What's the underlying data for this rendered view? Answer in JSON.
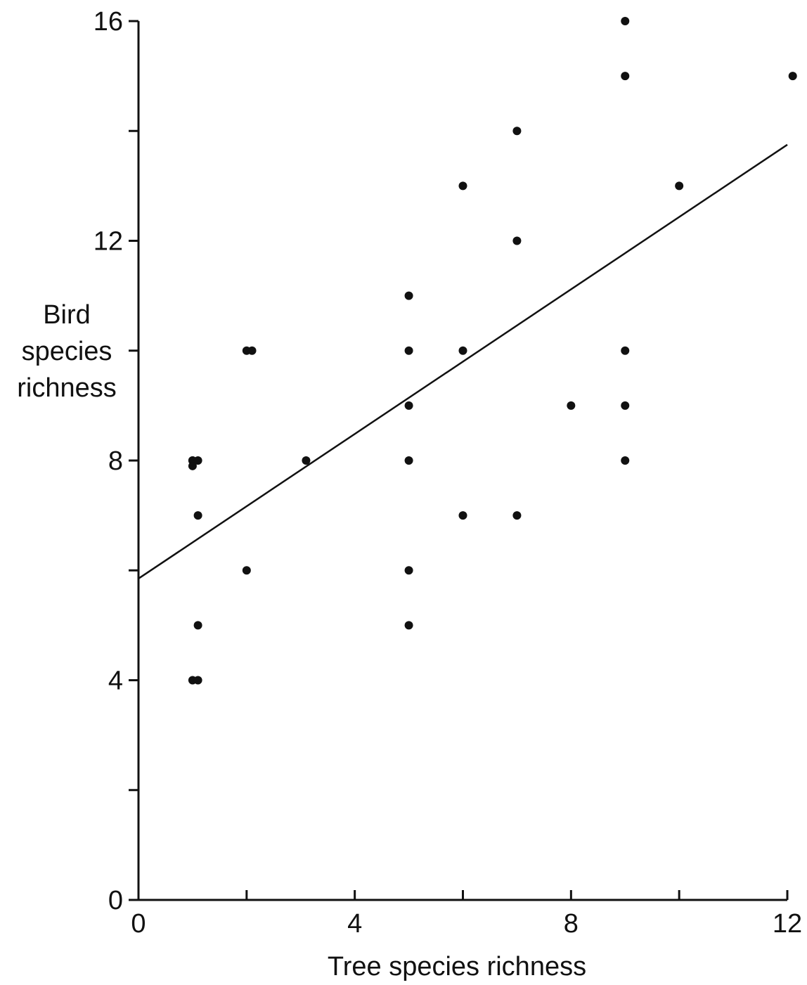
{
  "chart_data": {
    "type": "scatter",
    "title": "",
    "xlabel": "Tree species richness",
    "ylabel": [
      "Bird",
      "species",
      "richness"
    ],
    "xlim": [
      0,
      12
    ],
    "ylim": [
      0,
      16
    ],
    "x_ticks": [
      0,
      4,
      8,
      12
    ],
    "x_minor_ticks": [
      2,
      6,
      10
    ],
    "y_ticks": [
      0,
      4,
      8,
      12,
      16
    ],
    "y_minor_ticks": [
      2,
      6,
      10,
      14
    ],
    "grid": false,
    "legend": "none",
    "point_color": "#111111",
    "points": [
      {
        "x": 1,
        "y": 8
      },
      {
        "x": 1,
        "y": 8
      },
      {
        "x": 1.1,
        "y": 8
      },
      {
        "x": 1,
        "y": 7.9
      },
      {
        "x": 1.1,
        "y": 7
      },
      {
        "x": 1.1,
        "y": 5
      },
      {
        "x": 1,
        "y": 4
      },
      {
        "x": 1.1,
        "y": 4
      },
      {
        "x": 2,
        "y": 10
      },
      {
        "x": 2.1,
        "y": 10
      },
      {
        "x": 2,
        "y": 6
      },
      {
        "x": 3.1,
        "y": 8
      },
      {
        "x": 5,
        "y": 11
      },
      {
        "x": 5,
        "y": 10
      },
      {
        "x": 5,
        "y": 9
      },
      {
        "x": 5,
        "y": 8
      },
      {
        "x": 5,
        "y": 6
      },
      {
        "x": 5,
        "y": 5
      },
      {
        "x": 6,
        "y": 13
      },
      {
        "x": 6,
        "y": 10
      },
      {
        "x": 6,
        "y": 7
      },
      {
        "x": 7,
        "y": 14
      },
      {
        "x": 7,
        "y": 12
      },
      {
        "x": 7,
        "y": 7
      },
      {
        "x": 8,
        "y": 9
      },
      {
        "x": 9,
        "y": 16
      },
      {
        "x": 9,
        "y": 15
      },
      {
        "x": 9,
        "y": 10
      },
      {
        "x": 9,
        "y": 9
      },
      {
        "x": 9,
        "y": 8
      },
      {
        "x": 10,
        "y": 13
      },
      {
        "x": 12.1,
        "y": 15
      }
    ],
    "trendline": {
      "x": [
        0,
        12
      ],
      "y": [
        5.85,
        13.75
      ]
    }
  }
}
